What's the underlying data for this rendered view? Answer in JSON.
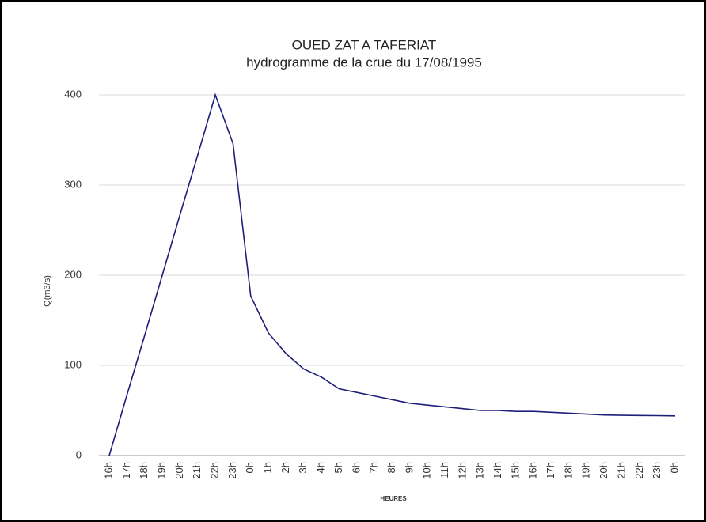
{
  "chart_data": {
    "type": "line",
    "title": "OUED ZAT A TAFERIAT",
    "subtitle": "hydrogramme de la crue du 17/08/1995",
    "x_label": "HEURES",
    "y_label": "Q(m3/s)",
    "categories": [
      "16h",
      "17h",
      "18h",
      "19h",
      "20h",
      "21h",
      "22h",
      "23h",
      "0h",
      "1h",
      "2h",
      "3h",
      "4h",
      "5h",
      "6h",
      "7h",
      "8h",
      "9h",
      "10h",
      "11h",
      "12h",
      "13h",
      "14h",
      "15h",
      "16h",
      "17h",
      "18h",
      "19h",
      "20h",
      "21h",
      "22h",
      "23h",
      "0h"
    ],
    "series": [
      {
        "name": "Q",
        "color": "#1f1f7a",
        "values": [
          0,
          67,
          133,
          200,
          267,
          333,
          400,
          346,
          177,
          136,
          113,
          96,
          87,
          74,
          70,
          66,
          62,
          58,
          56,
          54,
          52,
          50,
          50,
          49,
          49,
          48,
          47,
          46,
          45,
          44.7,
          44.5,
          44.3,
          44
        ]
      }
    ],
    "ylim": [
      0,
      400
    ],
    "yticks": [
      0,
      100,
      200,
      300,
      400
    ],
    "grid": true
  }
}
